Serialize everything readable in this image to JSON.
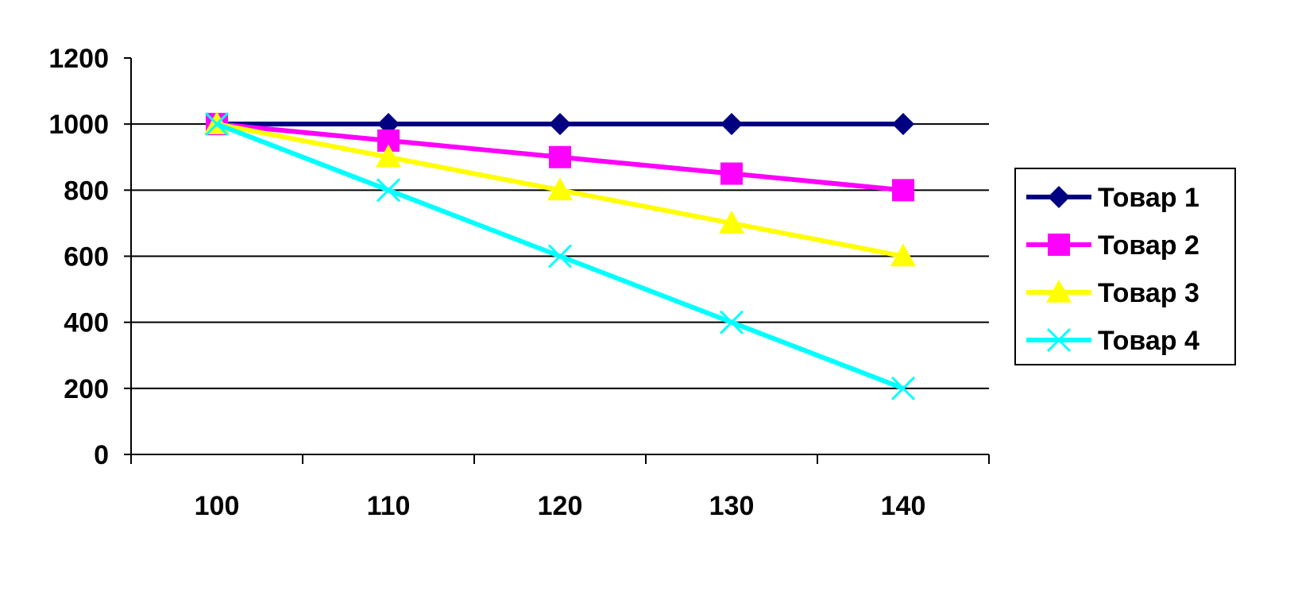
{
  "chart_data": {
    "type": "line",
    "categories": [
      "100",
      "110",
      "120",
      "130",
      "140"
    ],
    "ylim": [
      0,
      1200
    ],
    "yticks": [
      0,
      200,
      400,
      600,
      800,
      1000,
      1200
    ],
    "grid": true,
    "legend": "right",
    "series": [
      {
        "name": "Товар 1",
        "values": [
          1000,
          1000,
          1000,
          1000,
          1000
        ],
        "color": "#000080",
        "marker": "diamond"
      },
      {
        "name": "Товар 2",
        "values": [
          1000,
          950,
          900,
          850,
          800
        ],
        "color": "#FF00FF",
        "marker": "square"
      },
      {
        "name": "Товар 3",
        "values": [
          1000,
          900,
          800,
          700,
          600
        ],
        "color": "#FFFF00",
        "marker": "triangle"
      },
      {
        "name": "Товар 4",
        "values": [
          1000,
          800,
          600,
          400,
          200
        ],
        "color": "#00FFFF",
        "marker": "x"
      }
    ]
  }
}
